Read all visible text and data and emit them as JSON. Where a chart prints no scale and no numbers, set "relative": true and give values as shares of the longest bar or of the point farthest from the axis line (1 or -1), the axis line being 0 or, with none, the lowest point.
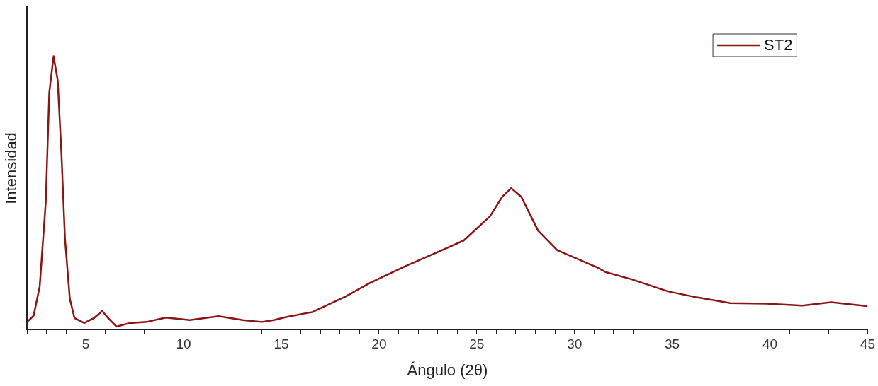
{
  "chart_data": {
    "type": "line",
    "xlabel": "Ángulo (2θ)",
    "ylabel": "Intensidad",
    "relative": true,
    "legend": "top right",
    "marker": "none",
    "line_style": "solid",
    "grid": false,
    "xlim": [
      2,
      45
    ],
    "xticks": [
      {
        "value": 2,
        "label": null
      },
      {
        "value": 3,
        "label": null
      },
      {
        "value": 4,
        "label": null
      },
      5,
      {
        "value": 6,
        "label": null
      },
      {
        "value": 7,
        "label": null
      },
      {
        "value": 8,
        "label": null
      },
      {
        "value": 9,
        "label": null
      },
      10,
      {
        "value": 11,
        "label": null
      },
      {
        "value": 12,
        "label": null
      },
      {
        "value": 13,
        "label": null
      },
      {
        "value": 14,
        "label": null
      },
      15,
      {
        "value": 16,
        "label": null
      },
      {
        "value": 17,
        "label": null
      },
      {
        "value": 18,
        "label": null
      },
      {
        "value": 19,
        "label": null
      },
      20,
      {
        "value": 21,
        "label": null
      },
      {
        "value": 22,
        "label": null
      },
      {
        "value": 23,
        "label": null
      },
      {
        "value": 24,
        "label": null
      },
      25,
      {
        "value": 26,
        "label": null
      },
      {
        "value": 27,
        "label": null
      },
      {
        "value": 28,
        "label": null
      },
      {
        "value": 29,
        "label": null
      },
      30,
      {
        "value": 31,
        "label": null
      },
      {
        "value": 32,
        "label": null
      },
      {
        "value": 33,
        "label": null
      },
      {
        "value": 34,
        "label": null
      },
      35,
      {
        "value": 36,
        "label": null
      },
      {
        "value": 37,
        "label": null
      },
      {
        "value": 38,
        "label": null
      },
      {
        "value": 39,
        "label": null
      },
      40,
      {
        "value": 41,
        "label": null
      },
      {
        "value": 42,
        "label": null
      },
      {
        "value": 43,
        "label": null
      },
      {
        "value": 44,
        "label": null
      },
      45
    ],
    "series": [
      {
        "name": "ST2",
        "color": "#8b1414",
        "x": [
          2.0,
          2.33,
          2.64,
          2.95,
          3.13,
          3.35,
          3.56,
          3.75,
          3.93,
          4.18,
          4.42,
          4.92,
          5.41,
          5.84,
          6.14,
          6.57,
          7.25,
          8.11,
          9.09,
          10.32,
          11.79,
          13.03,
          14.0,
          14.62,
          15.24,
          16.34,
          16.59,
          18.31,
          19.54,
          21.38,
          23.22,
          24.33,
          25.68,
          26.3,
          26.76,
          27.28,
          28.14,
          29.12,
          31.15,
          31.58,
          32.93,
          34.78,
          36.25,
          37.97,
          39.82,
          41.66,
          43.13,
          44.97
        ],
        "values": [
          0.027,
          0.05,
          0.157,
          0.467,
          0.867,
          1.0,
          0.912,
          0.645,
          0.334,
          0.112,
          0.041,
          0.023,
          0.041,
          0.067,
          0.041,
          0.01,
          0.023,
          0.027,
          0.043,
          0.034,
          0.048,
          0.034,
          0.027,
          0.034,
          0.045,
          0.06,
          0.063,
          0.121,
          0.17,
          0.232,
          0.29,
          0.325,
          0.414,
          0.485,
          0.517,
          0.485,
          0.361,
          0.29,
          0.227,
          0.21,
          0.183,
          0.139,
          0.117,
          0.096,
          0.094,
          0.087,
          0.099,
          0.085
        ]
      }
    ]
  }
}
